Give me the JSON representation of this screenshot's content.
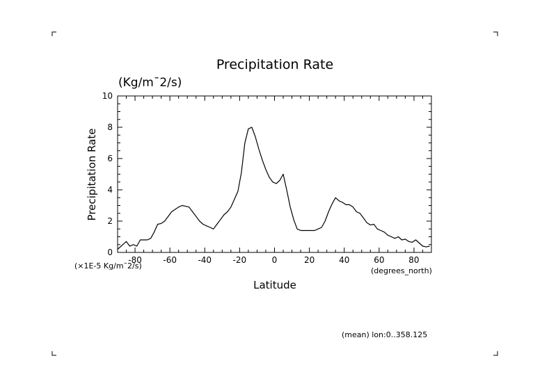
{
  "chart_data": {
    "type": "line",
    "title": "Precipitation Rate",
    "units_label": "(Kg/m¯2/s)",
    "xlabel": "Latitude",
    "ylabel": "Precipitation Rate",
    "x_unit_note": "(degrees_north)",
    "y_scale_note": "(×1E-5 Kg/m¯2/s)",
    "mean_note": "(mean) lon:0..358.125",
    "xlim": [
      -90,
      90
    ],
    "ylim": [
      0,
      10
    ],
    "x_ticks": [
      -80,
      -60,
      -40,
      -20,
      0,
      20,
      40,
      60,
      80
    ],
    "x_tick_labels": [
      "-80",
      "-60",
      "-40",
      "-20",
      "0",
      "20",
      "40",
      "60",
      "80"
    ],
    "y_ticks": [
      0,
      2,
      4,
      6,
      8,
      10
    ],
    "y_tick_labels": [
      "0",
      "2",
      "4",
      "6",
      "8",
      "10"
    ],
    "series": [
      {
        "name": "Precipitation Rate",
        "x": [
          -90,
          -87,
          -85,
          -83,
          -81,
          -79,
          -77,
          -75,
          -73,
          -71,
          -69,
          -67,
          -65,
          -63,
          -61,
          -59,
          -57,
          -55,
          -53,
          -51,
          -49,
          -47,
          -45,
          -43,
          -41,
          -39,
          -37,
          -35,
          -33,
          -31,
          -29,
          -27,
          -25,
          -23,
          -21,
          -19,
          -17,
          -15,
          -13,
          -11,
          -9,
          -7,
          -5,
          -3,
          -1,
          1,
          3,
          5,
          7,
          9,
          11,
          13,
          15,
          17,
          19,
          21,
          23,
          25,
          27,
          29,
          31,
          33,
          35,
          37,
          39,
          41,
          43,
          45,
          47,
          49,
          51,
          53,
          55,
          57,
          59,
          61,
          63,
          65,
          67,
          69,
          71,
          73,
          75,
          77,
          79,
          81,
          83,
          85,
          87,
          89
        ],
        "y": [
          0.2,
          0.5,
          0.7,
          0.4,
          0.5,
          0.4,
          0.8,
          0.8,
          0.8,
          0.9,
          1.3,
          1.8,
          1.85,
          2.0,
          2.3,
          2.6,
          2.75,
          2.9,
          3.0,
          2.95,
          2.9,
          2.6,
          2.3,
          2.0,
          1.8,
          1.7,
          1.6,
          1.5,
          1.8,
          2.1,
          2.4,
          2.6,
          2.9,
          3.4,
          3.9,
          5.1,
          7.0,
          7.9,
          8.0,
          7.4,
          6.6,
          5.9,
          5.3,
          4.8,
          4.5,
          4.4,
          4.6,
          5.0,
          4.0,
          2.9,
          2.1,
          1.5,
          1.4,
          1.4,
          1.4,
          1.4,
          1.4,
          1.5,
          1.6,
          2.0,
          2.6,
          3.1,
          3.5,
          3.3,
          3.2,
          3.05,
          3.05,
          2.9,
          2.6,
          2.5,
          2.2,
          1.9,
          1.75,
          1.8,
          1.5,
          1.4,
          1.3,
          1.1,
          1.0,
          0.9,
          1.0,
          0.8,
          0.85,
          0.7,
          0.65,
          0.8,
          0.6,
          0.4,
          0.35,
          0.4
        ]
      }
    ]
  }
}
